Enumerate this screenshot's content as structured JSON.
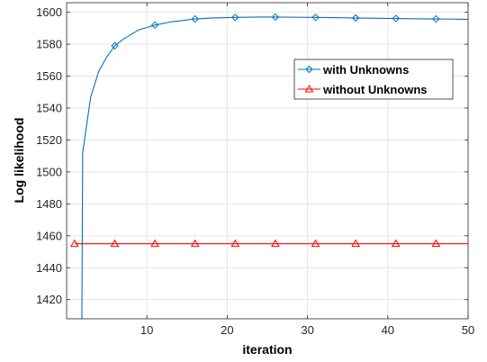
{
  "chart_data": {
    "type": "line",
    "title": "",
    "xlabel": "iteration",
    "ylabel": "Log likelihood",
    "xlim": [
      0,
      50
    ],
    "ylim": [
      1408,
      1606
    ],
    "xticks": [
      10,
      20,
      30,
      40,
      50
    ],
    "yticks": [
      1420,
      1440,
      1460,
      1480,
      1500,
      1520,
      1540,
      1560,
      1580,
      1600
    ],
    "grid": true,
    "legend_position": "upper-right",
    "series": [
      {
        "name": "with Unknowns",
        "color": "#0072bd",
        "marker": "diamond",
        "marker_x": [
          6,
          11,
          16,
          21,
          26,
          31,
          36,
          41,
          46
        ],
        "x": [
          1.9,
          2,
          3,
          4,
          5,
          6,
          7,
          8,
          9,
          10,
          11,
          13,
          16,
          18,
          21,
          24,
          26,
          28,
          31,
          34,
          36,
          38,
          41,
          44,
          46,
          48,
          50
        ],
        "y": [
          1408,
          1512,
          1547,
          1563,
          1572,
          1579,
          1583,
          1586,
          1589,
          1590.5,
          1592,
          1594,
          1595.8,
          1596.4,
          1596.8,
          1597,
          1597,
          1596.9,
          1596.8,
          1596.6,
          1596.4,
          1596.3,
          1596.1,
          1595.9,
          1595.8,
          1595.7,
          1595.6
        ]
      },
      {
        "name": "without Unknowns",
        "color": "#ff0000",
        "marker": "triangle",
        "marker_x": [
          1,
          6,
          11,
          16,
          21,
          26,
          31,
          36,
          41,
          46
        ],
        "x": [
          1,
          50
        ],
        "y": [
          1455,
          1455
        ]
      }
    ]
  }
}
